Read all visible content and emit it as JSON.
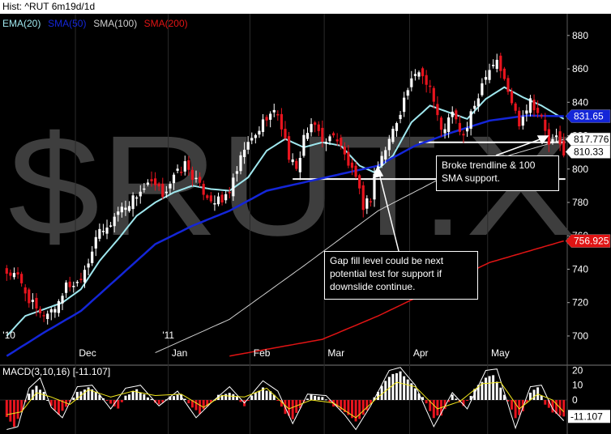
{
  "header": {
    "title": "Hist: ^RUT 6m19d/1d"
  },
  "watermark": "$RUT.X",
  "annotations": [
    {
      "lines": [
        "Broke trendline & 100",
        "SMA support."
      ]
    },
    {
      "lines": [
        "Gap fill level could be next",
        "potential test for support if",
        "downslide continue."
      ]
    }
  ],
  "colors": {
    "background": "#000000",
    "up_candle": "#ffffff",
    "down_candle": "#e8141e",
    "ema20": "#9fe7ee",
    "sma50": "#1426d8",
    "sma100": "#cfcfcf",
    "sma200": "#e01414",
    "macd_line": "#ffffff",
    "signal_line": "#f2e81c"
  },
  "chart_data": [
    {
      "type": "candlestick",
      "title": "",
      "legend": [
        {
          "name": "EMA(20)",
          "color": "#9fe7ee"
        },
        {
          "name": "SMA(50)",
          "color": "#1426d8"
        },
        {
          "name": "SMA(100)",
          "color": "#cfcfcf"
        },
        {
          "name": "SMA(200)",
          "color": "#e01414"
        }
      ],
      "ylim": [
        683,
        893
      ],
      "y_ticks": [
        880,
        860,
        840,
        820,
        800,
        780,
        760,
        740,
        720,
        700
      ],
      "x_labels": [
        {
          "label": "'10",
          "index": 0
        },
        {
          "label": "Dec",
          "index": 19
        },
        {
          "label": "'11",
          "index": 43
        },
        {
          "label": "Jan",
          "index": 44
        },
        {
          "label": "Feb",
          "index": 66
        },
        {
          "label": "Mar",
          "index": 86
        },
        {
          "label": "Apr",
          "index": 109
        },
        {
          "label": "May",
          "index": 130
        }
      ],
      "price_flags": [
        {
          "label": "831.65",
          "value": 831.65,
          "color": "#1426d8",
          "text_color": "#ffffff"
        },
        {
          "label": "817.776",
          "value": 817.776,
          "color": "#ffffff",
          "text_color": "#000000"
        },
        {
          "label": "810.33",
          "value": 810.33,
          "color": "#ffffff",
          "text_color": "#000000"
        },
        {
          "label": "756.925",
          "value": 756.925,
          "color": "#e01414",
          "text_color": "#ffffff"
        }
      ],
      "horizontal_levels": [
        {
          "value": 794,
          "from_index": 77,
          "to_index": 150
        },
        {
          "value": 816,
          "from_index": 111,
          "to_index": 150
        }
      ],
      "candle_count": 151,
      "close_path": [
        [
          0,
          738
        ],
        [
          3,
          735
        ],
        [
          6,
          722
        ],
        [
          9,
          712
        ],
        [
          13,
          717
        ],
        [
          16,
          730
        ],
        [
          19,
          732
        ],
        [
          22,
          745
        ],
        [
          24,
          760
        ],
        [
          27,
          764
        ],
        [
          30,
          775
        ],
        [
          33,
          780
        ],
        [
          36,
          787
        ],
        [
          39,
          791
        ],
        [
          42,
          785
        ],
        [
          45,
          795
        ],
        [
          48,
          803
        ],
        [
          52,
          789
        ],
        [
          55,
          782
        ],
        [
          58,
          780
        ],
        [
          61,
          792
        ],
        [
          64,
          812
        ],
        [
          67,
          820
        ],
        [
          70,
          832
        ],
        [
          73,
          834
        ],
        [
          76,
          808
        ],
        [
          78,
          798
        ],
        [
          80,
          820
        ],
        [
          83,
          826
        ],
        [
          86,
          815
        ],
        [
          88,
          822
        ],
        [
          91,
          808
        ],
        [
          94,
          793
        ],
        [
          96,
          778
        ],
        [
          98,
          783
        ],
        [
          99,
          797
        ],
        [
          102,
          812
        ],
        [
          105,
          829
        ],
        [
          108,
          848
        ],
        [
          111,
          859
        ],
        [
          114,
          850
        ],
        [
          117,
          822
        ],
        [
          120,
          833
        ],
        [
          123,
          819
        ],
        [
          126,
          838
        ],
        [
          129,
          858
        ],
        [
          132,
          866
        ],
        [
          135,
          846
        ],
        [
          138,
          828
        ],
        [
          141,
          842
        ],
        [
          144,
          830
        ],
        [
          146,
          815
        ],
        [
          148,
          818
        ],
        [
          150,
          810.33
        ]
      ],
      "series": [
        {
          "name": "EMA(20)",
          "path": [
            [
              0,
              700
            ],
            [
              5,
              712
            ],
            [
              10,
              716
            ],
            [
              15,
              720
            ],
            [
              20,
              728
            ],
            [
              25,
              745
            ],
            [
              30,
              758
            ],
            [
              35,
              772
            ],
            [
              40,
              780
            ],
            [
              45,
              786
            ],
            [
              50,
              790
            ],
            [
              55,
              788
            ],
            [
              60,
              787
            ],
            [
              65,
              795
            ],
            [
              70,
              811
            ],
            [
              75,
              818
            ],
            [
              80,
              813
            ],
            [
              85,
              816
            ],
            [
              90,
              814
            ],
            [
              95,
              802
            ],
            [
              99,
              798
            ],
            [
              104,
              808
            ],
            [
              109,
              828
            ],
            [
              114,
              838
            ],
            [
              119,
              834
            ],
            [
              124,
              830
            ],
            [
              129,
              842
            ],
            [
              134,
              849
            ],
            [
              139,
              843
            ],
            [
              144,
              838
            ],
            [
              150,
              830
            ]
          ]
        },
        {
          "name": "SMA(50)",
          "path": [
            [
              0,
              688
            ],
            [
              10,
              702
            ],
            [
              20,
              715
            ],
            [
              30,
              735
            ],
            [
              40,
              755
            ],
            [
              50,
              766
            ],
            [
              60,
              775
            ],
            [
              70,
              787
            ],
            [
              80,
              792
            ],
            [
              90,
              797
            ],
            [
              100,
              802
            ],
            [
              110,
              814
            ],
            [
              120,
              822
            ],
            [
              130,
              829
            ],
            [
              140,
              832
            ],
            [
              150,
              831.65
            ]
          ]
        },
        {
          "name": "SMA(100)",
          "path": [
            [
              40,
              690
            ],
            [
              60,
              710
            ],
            [
              80,
              742
            ],
            [
              100,
              775
            ],
            [
              120,
              798
            ],
            [
              135,
              808
            ],
            [
              150,
              817.776
            ]
          ]
        },
        {
          "name": "SMA(200)",
          "path": [
            [
              60,
              688
            ],
            [
              85,
              698
            ],
            [
              100,
              712
            ],
            [
              115,
              728
            ],
            [
              130,
              744
            ],
            [
              150,
              756.925
            ]
          ]
        }
      ]
    },
    {
      "type": "histogram",
      "title": "",
      "legend": [
        {
          "name": "MACD(3,10,16)"
        }
      ],
      "ylim": [
        -23,
        23
      ],
      "y_ticks": [
        20,
        10,
        0
      ],
      "last_value": -11.107,
      "last_value_label": "-11.107",
      "histogram_path": [
        [
          0,
          -12
        ],
        [
          2,
          -18
        ],
        [
          4,
          -8
        ],
        [
          6,
          4
        ],
        [
          8,
          9
        ],
        [
          10,
          5
        ],
        [
          12,
          -4
        ],
        [
          14,
          -10
        ],
        [
          16,
          -5
        ],
        [
          19,
          5
        ],
        [
          22,
          8
        ],
        [
          25,
          4
        ],
        [
          28,
          -3
        ],
        [
          30,
          -6
        ],
        [
          32,
          3
        ],
        [
          35,
          7
        ],
        [
          38,
          2
        ],
        [
          41,
          -3
        ],
        [
          44,
          2
        ],
        [
          47,
          4
        ],
        [
          50,
          -5
        ],
        [
          52,
          -9
        ],
        [
          54,
          -4
        ],
        [
          57,
          3
        ],
        [
          60,
          5
        ],
        [
          62,
          2
        ],
        [
          64,
          -4
        ],
        [
          66,
          3
        ],
        [
          69,
          8
        ],
        [
          72,
          4
        ],
        [
          75,
          -9
        ],
        [
          77,
          -13
        ],
        [
          79,
          -5
        ],
        [
          82,
          4
        ],
        [
          85,
          2
        ],
        [
          88,
          -4
        ],
        [
          91,
          -8
        ],
        [
          94,
          -15
        ],
        [
          96,
          -10
        ],
        [
          98,
          -3
        ],
        [
          100,
          6
        ],
        [
          103,
          16
        ],
        [
          106,
          19
        ],
        [
          109,
          11
        ],
        [
          112,
          2
        ],
        [
          115,
          -12
        ],
        [
          117,
          -10
        ],
        [
          120,
          3
        ],
        [
          123,
          -4
        ],
        [
          126,
          7
        ],
        [
          129,
          15
        ],
        [
          131,
          17
        ],
        [
          134,
          4
        ],
        [
          137,
          -12
        ],
        [
          139,
          -8
        ],
        [
          141,
          5
        ],
        [
          143,
          8
        ],
        [
          145,
          -3
        ],
        [
          147,
          -8
        ],
        [
          150,
          -11.107
        ]
      ],
      "macd_path": [
        [
          0,
          -20
        ],
        [
          3,
          -18
        ],
        [
          6,
          8
        ],
        [
          9,
          15
        ],
        [
          12,
          -5
        ],
        [
          15,
          -12
        ],
        [
          19,
          9
        ],
        [
          23,
          10
        ],
        [
          28,
          -6
        ],
        [
          32,
          8
        ],
        [
          36,
          10
        ],
        [
          41,
          -4
        ],
        [
          46,
          6
        ],
        [
          51,
          -12
        ],
        [
          55,
          -2
        ],
        [
          60,
          9
        ],
        [
          64,
          -2
        ],
        [
          69,
          13
        ],
        [
          73,
          6
        ],
        [
          77,
          -16
        ],
        [
          81,
          4
        ],
        [
          86,
          3
        ],
        [
          91,
          -10
        ],
        [
          94,
          -20
        ],
        [
          98,
          -4
        ],
        [
          103,
          20
        ],
        [
          106,
          22
        ],
        [
          110,
          10
        ],
        [
          115,
          -18
        ],
        [
          120,
          5
        ],
        [
          124,
          -6
        ],
        [
          129,
          20
        ],
        [
          132,
          21
        ],
        [
          137,
          -19
        ],
        [
          141,
          9
        ],
        [
          144,
          10
        ],
        [
          147,
          -6
        ],
        [
          150,
          -14
        ]
      ],
      "signal_path": [
        [
          0,
          -10
        ],
        [
          4,
          -8
        ],
        [
          8,
          5
        ],
        [
          12,
          2
        ],
        [
          17,
          -3
        ],
        [
          22,
          7
        ],
        [
          28,
          2
        ],
        [
          34,
          6
        ],
        [
          40,
          3
        ],
        [
          47,
          4
        ],
        [
          53,
          -5
        ],
        [
          58,
          3
        ],
        [
          64,
          2
        ],
        [
          70,
          8
        ],
        [
          76,
          -6
        ],
        [
          82,
          0
        ],
        [
          88,
          -2
        ],
        [
          94,
          -12
        ],
        [
          100,
          2
        ],
        [
          105,
          12
        ],
        [
          110,
          9
        ],
        [
          116,
          -6
        ],
        [
          122,
          -1
        ],
        [
          128,
          11
        ],
        [
          133,
          12
        ],
        [
          138,
          -6
        ],
        [
          143,
          4
        ],
        [
          147,
          0
        ],
        [
          150,
          -8
        ]
      ]
    }
  ]
}
